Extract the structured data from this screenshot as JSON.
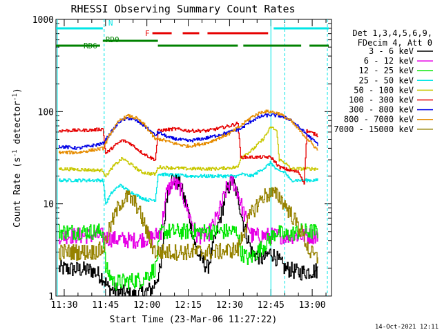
{
  "chart_data": {
    "type": "line",
    "title": "RHESSI Observing Summary Count Rates",
    "xlabel": "Start Time (23-Mar-06 11:27:22)",
    "ylabel": "Count Rate (s⁻¹ detector⁻¹)",
    "ylabel_parts": {
      "main": "Count Rate (s",
      "sup1": "-1",
      "mid": " detector",
      "sup2": "-1",
      "end": ")"
    },
    "yscale": "log",
    "xlim": [
      "11:27",
      "13:07"
    ],
    "ylim": [
      1,
      1000
    ],
    "x_ticks": [
      "11:30",
      "11:45",
      "12:00",
      "12:15",
      "12:30",
      "12:45",
      "13:00"
    ],
    "y_ticks": [
      "1",
      "10",
      "100",
      "1000"
    ],
    "legend_placement": "right",
    "legend_header": [
      "Det 1,3,4,5,6,9,",
      "FDecim 4, Att 0"
    ],
    "series": [
      {
        "name": "3 - 6 keV",
        "color": "#000000",
        "points": [
          [
            "11:28",
            2
          ],
          [
            "11:40",
            1.9
          ],
          [
            "11:44",
            1.6
          ],
          [
            "11:46",
            1.2
          ],
          [
            "11:55",
            1
          ],
          [
            "12:02",
            1.2
          ],
          [
            "12:05",
            2
          ],
          [
            "12:07",
            12
          ],
          [
            "12:09",
            19
          ],
          [
            "12:12",
            16
          ],
          [
            "12:15",
            8
          ],
          [
            "12:18",
            3
          ],
          [
            "12:22",
            2
          ],
          [
            "12:26",
            6
          ],
          [
            "12:29",
            14
          ],
          [
            "12:31",
            18
          ],
          [
            "12:33",
            12
          ],
          [
            "12:35",
            6
          ],
          [
            "12:38",
            3
          ],
          [
            "12:42",
            2.5
          ],
          [
            "12:45",
            3
          ],
          [
            "12:50",
            2
          ],
          [
            "12:55",
            1.8
          ],
          [
            "13:02",
            1.9
          ]
        ]
      },
      {
        "name": "6 - 12 keV",
        "color": "#e600e6",
        "points": [
          [
            "11:28",
            4.5
          ],
          [
            "11:44",
            4.5
          ],
          [
            "11:46",
            4.2
          ],
          [
            "11:55",
            4
          ],
          [
            "12:02",
            4.3
          ],
          [
            "12:05",
            5
          ],
          [
            "12:07",
            13
          ],
          [
            "12:09",
            17
          ],
          [
            "12:12",
            15
          ],
          [
            "12:15",
            8
          ],
          [
            "12:18",
            4.5
          ],
          [
            "12:22",
            4.5
          ],
          [
            "12:26",
            8
          ],
          [
            "12:29",
            15
          ],
          [
            "12:31",
            18
          ],
          [
            "12:33",
            13
          ],
          [
            "12:35",
            8
          ],
          [
            "12:38",
            4.5
          ],
          [
            "12:45",
            4.5
          ],
          [
            "12:55",
            4.5
          ],
          [
            "13:02",
            4.5
          ]
        ]
      },
      {
        "name": "12 - 25 keV",
        "color": "#00e600",
        "points": [
          [
            "11:28",
            5
          ],
          [
            "11:44",
            5
          ],
          [
            "11:45",
            2
          ],
          [
            "11:48",
            1.4
          ],
          [
            "11:58",
            1.5
          ],
          [
            "12:03",
            2
          ],
          [
            "12:05",
            5
          ],
          [
            "12:15",
            5
          ],
          [
            "12:25",
            5
          ],
          [
            "12:33",
            5
          ],
          [
            "12:34",
            3
          ],
          [
            "12:37",
            2.5
          ],
          [
            "12:40",
            3
          ],
          [
            "12:44",
            4
          ],
          [
            "12:47",
            5
          ],
          [
            "12:50",
            4.5
          ],
          [
            "12:55",
            5
          ],
          [
            "13:02",
            5
          ]
        ]
      },
      {
        "name": "25 - 50 keV",
        "color": "#00e6e6",
        "points": [
          [
            "11:28",
            18
          ],
          [
            "11:44",
            18
          ],
          [
            "11:45",
            10
          ],
          [
            "11:47",
            13
          ],
          [
            "11:50",
            16
          ],
          [
            "11:53",
            14
          ],
          [
            "11:57",
            12
          ],
          [
            "12:00",
            11
          ],
          [
            "12:03",
            11
          ],
          [
            "12:04",
            21
          ],
          [
            "12:15",
            20
          ],
          [
            "12:25",
            20
          ],
          [
            "12:33",
            20
          ],
          [
            "12:34",
            21
          ],
          [
            "12:38",
            20
          ],
          [
            "12:43",
            25
          ],
          [
            "12:45",
            28
          ],
          [
            "12:47",
            23
          ],
          [
            "12:50",
            22
          ],
          [
            "12:52",
            18
          ],
          [
            "12:58",
            18
          ],
          [
            "13:02",
            18
          ]
        ]
      },
      {
        "name": "50 - 100 keV",
        "color": "#c8c800",
        "points": [
          [
            "11:28",
            24
          ],
          [
            "11:44",
            23
          ],
          [
            "11:45",
            20
          ],
          [
            "11:48",
            26
          ],
          [
            "11:51",
            31
          ],
          [
            "11:54",
            27
          ],
          [
            "11:58",
            22
          ],
          [
            "12:02",
            21
          ],
          [
            "12:03",
            21
          ],
          [
            "12:04",
            25
          ],
          [
            "12:15",
            24
          ],
          [
            "12:25",
            24
          ],
          [
            "12:33",
            25
          ],
          [
            "12:34",
            32
          ],
          [
            "12:38",
            38
          ],
          [
            "12:42",
            50
          ],
          [
            "12:45",
            68
          ],
          [
            "12:47",
            62
          ],
          [
            "12:48",
            30
          ],
          [
            "12:50",
            28
          ],
          [
            "12:52",
            24
          ],
          [
            "13:02",
            24
          ]
        ]
      },
      {
        "name": "100 - 300 keV",
        "color": "#e60000",
        "points": [
          [
            "11:28",
            62
          ],
          [
            "11:40",
            63
          ],
          [
            "11:44",
            65
          ],
          [
            "11:45",
            35
          ],
          [
            "11:48",
            42
          ],
          [
            "11:51",
            49
          ],
          [
            "11:54",
            45
          ],
          [
            "11:58",
            36
          ],
          [
            "12:01",
            32
          ],
          [
            "12:03",
            30
          ],
          [
            "12:04",
            62
          ],
          [
            "12:10",
            65
          ],
          [
            "12:15",
            62
          ],
          [
            "12:22",
            62
          ],
          [
            "12:30",
            70
          ],
          [
            "12:33",
            75
          ],
          [
            "12:34",
            32
          ],
          [
            "12:38",
            32
          ],
          [
            "12:45",
            32
          ],
          [
            "12:48",
            25
          ],
          [
            "12:52",
            23
          ],
          [
            "12:55",
            22
          ],
          [
            "12:57",
            17
          ],
          [
            "12:58",
            62
          ],
          [
            "13:02",
            55
          ]
        ]
      },
      {
        "name": "300 - 800 keV",
        "color": "#0000e6",
        "points": [
          [
            "11:28",
            42
          ],
          [
            "11:35",
            40
          ],
          [
            "11:44",
            45
          ],
          [
            "11:47",
            60
          ],
          [
            "11:50",
            78
          ],
          [
            "11:53",
            85
          ],
          [
            "11:56",
            80
          ],
          [
            "11:59",
            70
          ],
          [
            "12:01",
            62
          ],
          [
            "12:03",
            55
          ],
          [
            "12:04",
            60
          ],
          [
            "12:08",
            52
          ],
          [
            "12:15",
            48
          ],
          [
            "12:22",
            52
          ],
          [
            "12:30",
            60
          ],
          [
            "12:34",
            65
          ],
          [
            "12:38",
            80
          ],
          [
            "12:42",
            90
          ],
          [
            "12:45",
            92
          ],
          [
            "12:48",
            90
          ],
          [
            "12:52",
            82
          ],
          [
            "12:57",
            60
          ],
          [
            "13:02",
            44
          ]
        ]
      },
      {
        "name": "800 - 7000 keV",
        "color": "#e68c00",
        "points": [
          [
            "11:28",
            36
          ],
          [
            "11:35",
            36
          ],
          [
            "11:44",
            40
          ],
          [
            "11:47",
            60
          ],
          [
            "11:50",
            80
          ],
          [
            "11:53",
            90
          ],
          [
            "11:56",
            85
          ],
          [
            "11:59",
            72
          ],
          [
            "12:01",
            60
          ],
          [
            "12:03",
            50
          ],
          [
            "12:05",
            50
          ],
          [
            "12:10",
            45
          ],
          [
            "12:15",
            42
          ],
          [
            "12:22",
            46
          ],
          [
            "12:30",
            58
          ],
          [
            "12:34",
            70
          ],
          [
            "12:38",
            88
          ],
          [
            "12:42",
            100
          ],
          [
            "12:45",
            100
          ],
          [
            "12:48",
            95
          ],
          [
            "12:52",
            80
          ],
          [
            "12:57",
            55
          ],
          [
            "13:02",
            38
          ]
        ]
      },
      {
        "name": "7000 - 15000 keV",
        "color": "#968200",
        "points": [
          [
            "11:28",
            3
          ],
          [
            "11:40",
            3
          ],
          [
            "11:44",
            3.2
          ],
          [
            "11:47",
            6
          ],
          [
            "11:50",
            10
          ],
          [
            "11:53",
            12
          ],
          [
            "11:56",
            10
          ],
          [
            "11:59",
            6
          ],
          [
            "12:01",
            4
          ],
          [
            "12:03",
            3
          ],
          [
            "12:05",
            3
          ],
          [
            "12:15",
            3
          ],
          [
            "12:25",
            3
          ],
          [
            "12:33",
            3.2
          ],
          [
            "12:35",
            5
          ],
          [
            "12:38",
            8
          ],
          [
            "12:42",
            12
          ],
          [
            "12:45",
            13
          ],
          [
            "12:48",
            12
          ],
          [
            "12:52",
            8
          ],
          [
            "12:56",
            5
          ],
          [
            "12:59",
            3
          ],
          [
            "13:02",
            2.5
          ]
        ]
      }
    ],
    "flag_bars": [
      {
        "label": "N",
        "color": "#00e6e6",
        "segments": [
          [
            "11:27",
            "11:44"
          ],
          [
            "12:46",
            "13:06"
          ]
        ]
      },
      {
        "label": "F",
        "color": "#e60000",
        "segments": [
          [
            "12:02",
            "12:09"
          ],
          [
            "12:13",
            "12:19"
          ],
          [
            "12:22",
            "12:44"
          ]
        ]
      },
      {
        "label": "RD0",
        "color": "#008200",
        "segments": [
          [
            "11:44",
            "12:04"
          ]
        ]
      },
      {
        "label": "RD6",
        "color": "#008200",
        "segments": [
          [
            "11:27",
            "11:43"
          ],
          [
            "12:04",
            "12:33"
          ],
          [
            "12:35",
            "12:56"
          ],
          [
            "12:59",
            "13:06"
          ]
        ]
      }
    ],
    "vertical_markers": {
      "color": "#00e6e6",
      "dashed": [
        "11:44:30",
        "12:50",
        "13:05:30"
      ],
      "solid": [
        "11:27:30",
        "12:45"
      ]
    },
    "footer_timestamp": "14-Oct-2021 12:11"
  }
}
